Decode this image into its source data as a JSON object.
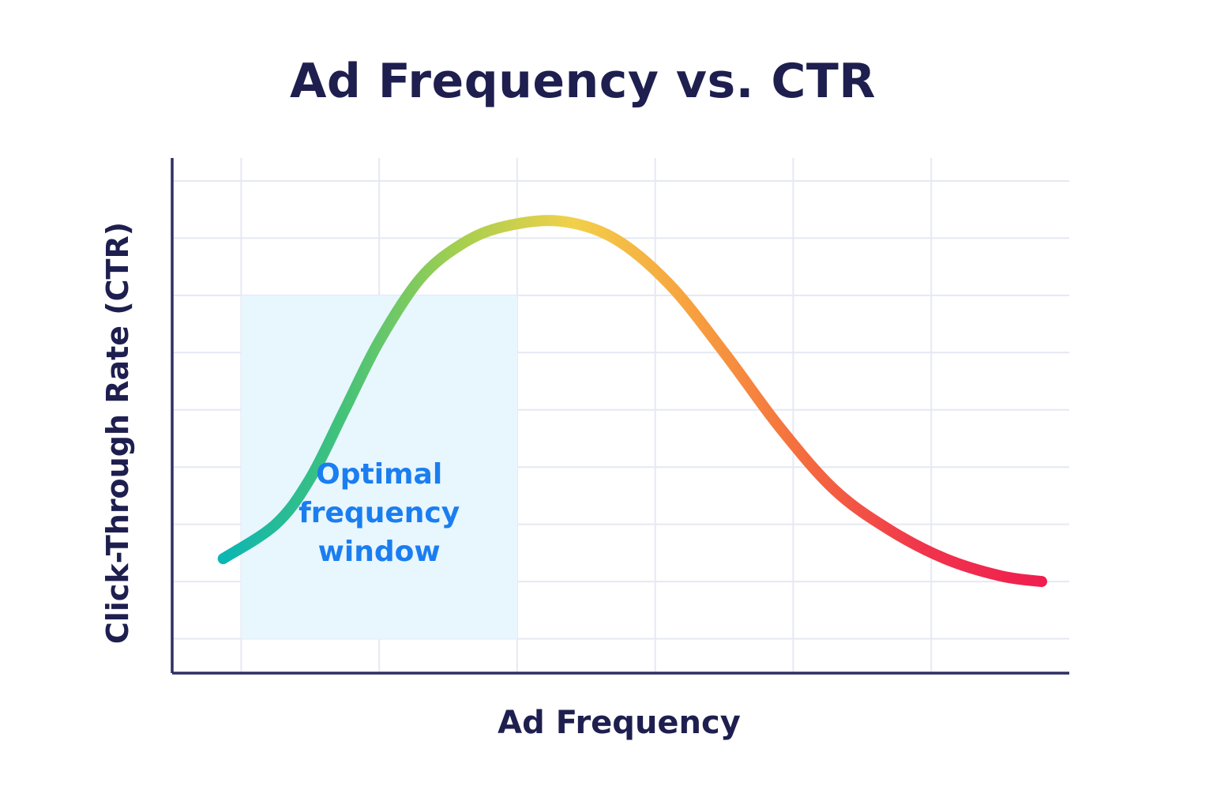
{
  "chart_data": {
    "type": "line",
    "title": "Ad Frequency vs. CTR",
    "xlabel": "Ad Frequency",
    "ylabel": "Click-Through Rate (CTR)",
    "xlim": [
      0,
      6.5
    ],
    "ylim": [
      0,
      9
    ],
    "grid": true,
    "x_gridlines": [
      0.5,
      1.5,
      2.5,
      3.5,
      4.5,
      5.5
    ],
    "y_gridlines": [
      0.6,
      1.6,
      2.6,
      3.6,
      4.6,
      5.6,
      6.6,
      7.6,
      8.6
    ],
    "series": [
      {
        "x": [
          0.37,
          0.75,
          1.0,
          1.25,
          1.5,
          1.8,
          2.1,
          2.4,
          2.8,
          3.2,
          3.6,
          4.0,
          4.4,
          4.8,
          5.2,
          5.6,
          6.0,
          6.3
        ],
        "y": [
          2.0,
          2.6,
          3.4,
          4.6,
          5.8,
          6.9,
          7.5,
          7.8,
          7.9,
          7.6,
          6.8,
          5.6,
          4.3,
          3.2,
          2.5,
          2.0,
          1.7,
          1.6
        ],
        "colors": [
          "#0cb6b2",
          "#42c27a",
          "#a4cf4f",
          "#f2d04a",
          "#f7a13f",
          "#f46a3f",
          "#f0344d",
          "#ef1e4f"
        ]
      }
    ],
    "annotations": [
      {
        "type": "region",
        "x_range": [
          0.5,
          2.5
        ],
        "y_range": [
          0.6,
          6.6
        ],
        "color": "#e8f6fe",
        "lines": [
          "Optimal",
          "frequency",
          "window"
        ],
        "text_color": "#1a7ef0"
      }
    ]
  }
}
